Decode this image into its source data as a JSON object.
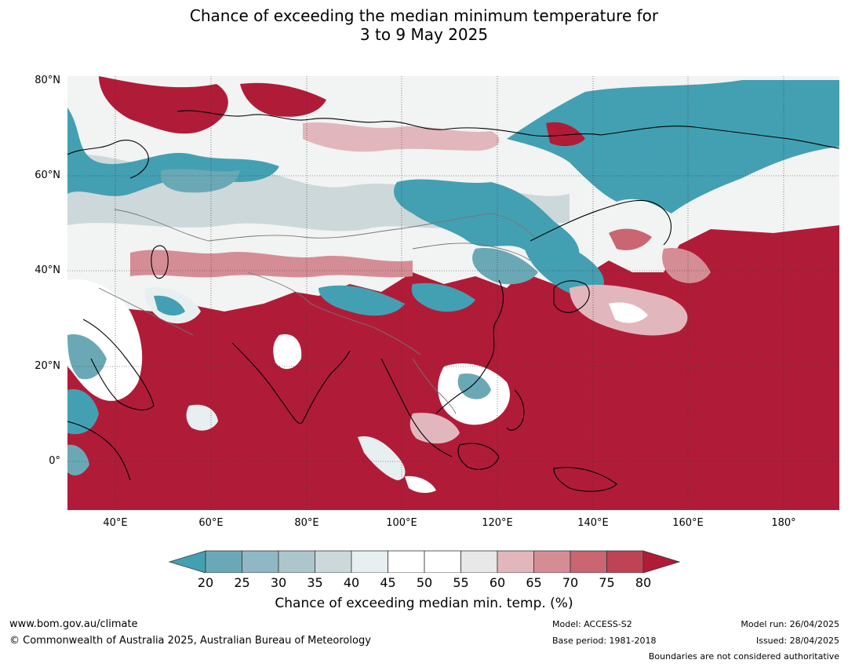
{
  "title": {
    "line1": "Chance of exceeding the median minimum temperature for",
    "line2": "3 to 9 May 2025"
  },
  "map": {
    "lat_labels": [
      "80°N",
      "60°N",
      "40°N",
      "20°N",
      "0°"
    ],
    "lon_labels": [
      "40°E",
      "60°E",
      "80°E",
      "100°E",
      "120°E",
      "140°E",
      "160°E",
      "180°"
    ],
    "extent": {
      "lon": [
        30,
        191
      ],
      "lat": [
        -10,
        80.5
      ]
    }
  },
  "colorbar": {
    "ticks": [
      "20",
      "25",
      "30",
      "35",
      "40",
      "45",
      "50",
      "55",
      "60",
      "65",
      "70",
      "75",
      "80"
    ],
    "colors": [
      "#6ba8b6",
      "#8fb8c4",
      "#adc6cc",
      "#cdd8da",
      "#e8eff1",
      "#ffffff",
      "#ffffff",
      "#e8e8e8",
      "#e2b6bd",
      "#d58d95",
      "#c96672",
      "#be4455"
    ],
    "under_color": "#43a0b2",
    "over_color": "#b01c38",
    "label": "Chance of exceeding median min. temp. (%)"
  },
  "footer": {
    "url": "www.bom.gov.au/climate",
    "copyright": "© Commonwealth of Australia 2025, Australian Bureau of Meteorology",
    "model": "Model: ACCESS-S2",
    "base_period": "Base period: 1981-2018",
    "model_run": "Model run: 26/04/2025",
    "issued": "Issued: 28/04/2025",
    "disclaimer": "Boundaries are not considered authoritative"
  }
}
